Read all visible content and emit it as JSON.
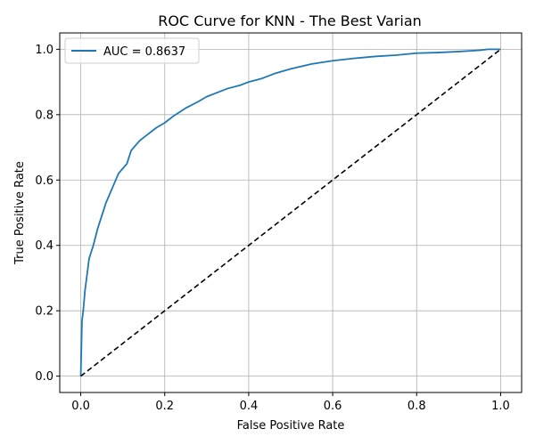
{
  "chart_data": {
    "type": "line",
    "title": "ROC Curve for KNN - The Best Varian",
    "xlabel": "False Positive Rate",
    "ylabel": "True Positive Rate",
    "xlim": [
      -0.05,
      1.05
    ],
    "ylim": [
      -0.05,
      1.05
    ],
    "xticks": [
      0.0,
      0.2,
      0.4,
      0.6,
      0.8,
      1.0
    ],
    "yticks": [
      0.0,
      0.2,
      0.4,
      0.6,
      0.8,
      1.0
    ],
    "xtick_labels": [
      "0.0",
      "0.2",
      "0.4",
      "0.6",
      "0.8",
      "1.0"
    ],
    "ytick_labels": [
      "0.0",
      "0.2",
      "0.4",
      "0.6",
      "0.8",
      "1.0"
    ],
    "grid": true,
    "legend_position": "top-left",
    "series": [
      {
        "name": "AUC = 0.8637",
        "color": "#1f77b4",
        "style": "solid",
        "x": [
          0.0,
          0.003,
          0.006,
          0.01,
          0.012,
          0.02,
          0.03,
          0.04,
          0.05,
          0.06,
          0.07,
          0.08,
          0.09,
          0.1,
          0.11,
          0.12,
          0.13,
          0.14,
          0.16,
          0.18,
          0.2,
          0.22,
          0.25,
          0.28,
          0.3,
          0.32,
          0.35,
          0.38,
          0.4,
          0.43,
          0.46,
          0.5,
          0.55,
          0.6,
          0.65,
          0.7,
          0.75,
          0.8,
          0.85,
          0.9,
          0.95,
          0.97,
          1.0
        ],
        "y": [
          0.0,
          0.17,
          0.2,
          0.26,
          0.28,
          0.36,
          0.4,
          0.45,
          0.49,
          0.53,
          0.56,
          0.59,
          0.62,
          0.635,
          0.65,
          0.69,
          0.705,
          0.72,
          0.74,
          0.76,
          0.775,
          0.795,
          0.82,
          0.84,
          0.855,
          0.865,
          0.88,
          0.89,
          0.9,
          0.91,
          0.925,
          0.94,
          0.955,
          0.965,
          0.972,
          0.978,
          0.982,
          0.988,
          0.99,
          0.993,
          0.997,
          1.0,
          1.0
        ]
      },
      {
        "name": "",
        "color": "#000000",
        "style": "dashed",
        "x": [
          0.0,
          1.0
        ],
        "y": [
          0.0,
          1.0
        ]
      }
    ]
  }
}
